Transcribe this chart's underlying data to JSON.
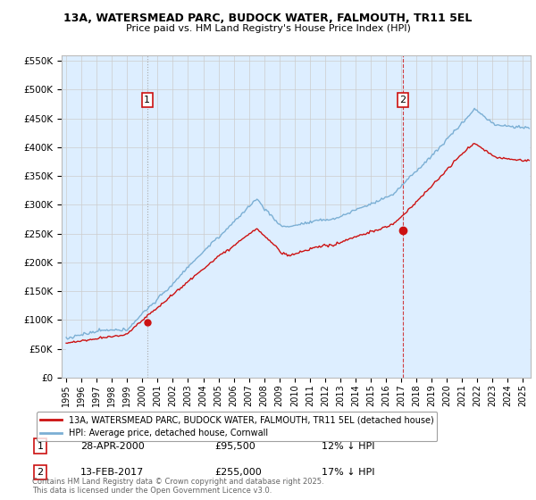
{
  "title": "13A, WATERSMEAD PARC, BUDOCK WATER, FALMOUTH, TR11 5EL",
  "subtitle": "Price paid vs. HM Land Registry's House Price Index (HPI)",
  "hpi_label": "HPI: Average price, detached house, Cornwall",
  "property_label": "13A, WATERSMEAD PARC, BUDOCK WATER, FALMOUTH, TR11 5EL (detached house)",
  "hpi_color": "#7bafd4",
  "hpi_fill": "#ddeeff",
  "property_color": "#cc1111",
  "annotation1_date": "28-APR-2000",
  "annotation1_price": "£95,500",
  "annotation1_hpi": "12% ↓ HPI",
  "annotation2_date": "13-FEB-2017",
  "annotation2_price": "£255,000",
  "annotation2_hpi": "17% ↓ HPI",
  "footer": "Contains HM Land Registry data © Crown copyright and database right 2025.\nThis data is licensed under the Open Government Licence v3.0.",
  "ylim": [
    0,
    560000
  ],
  "yticks": [
    0,
    50000,
    100000,
    150000,
    200000,
    250000,
    300000,
    350000,
    400000,
    450000,
    500000,
    550000
  ],
  "xlim_start": 1994.7,
  "xlim_end": 2025.5,
  "sale1_x": 2000.32,
  "sale1_y": 95500,
  "sale2_x": 2017.12,
  "sale2_y": 255000,
  "background_color": "#ffffff",
  "grid_color": "#cccccc"
}
